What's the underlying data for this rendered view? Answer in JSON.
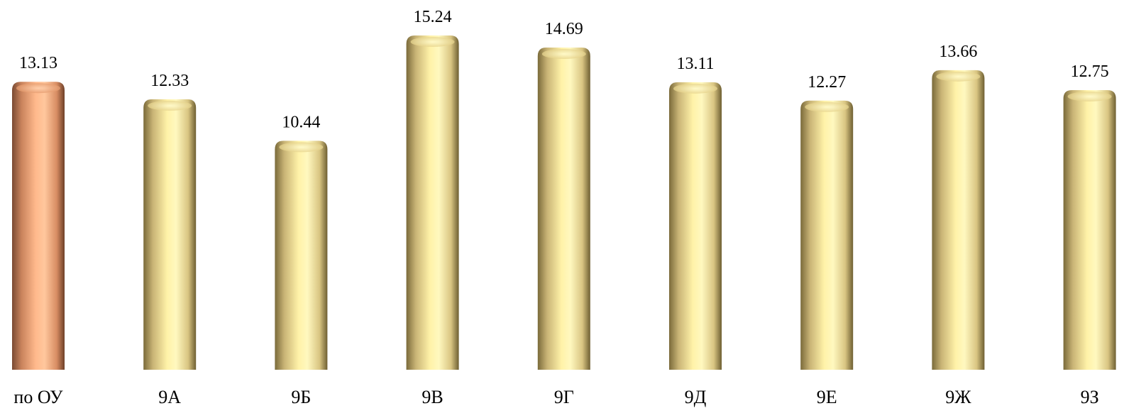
{
  "chart_data": {
    "type": "bar",
    "categories": [
      "по ОУ",
      "9А",
      "9Б",
      "9В",
      "9Г",
      "9Д",
      "9Е",
      "9Ж",
      "9З"
    ],
    "values": [
      13.13,
      12.33,
      10.44,
      15.24,
      14.69,
      13.11,
      12.27,
      13.66,
      12.75
    ],
    "data_labels": [
      "13.13",
      "12.33",
      "10.44",
      "15.24",
      "14.69",
      "13.11",
      "12.27",
      "13.66",
      "12.75"
    ],
    "highlight_index": 0,
    "colors": {
      "highlight": "#f5a878",
      "bar": "#f5e39a"
    },
    "ylim": [
      0,
      15.24
    ],
    "grid": false,
    "legend": false
  }
}
